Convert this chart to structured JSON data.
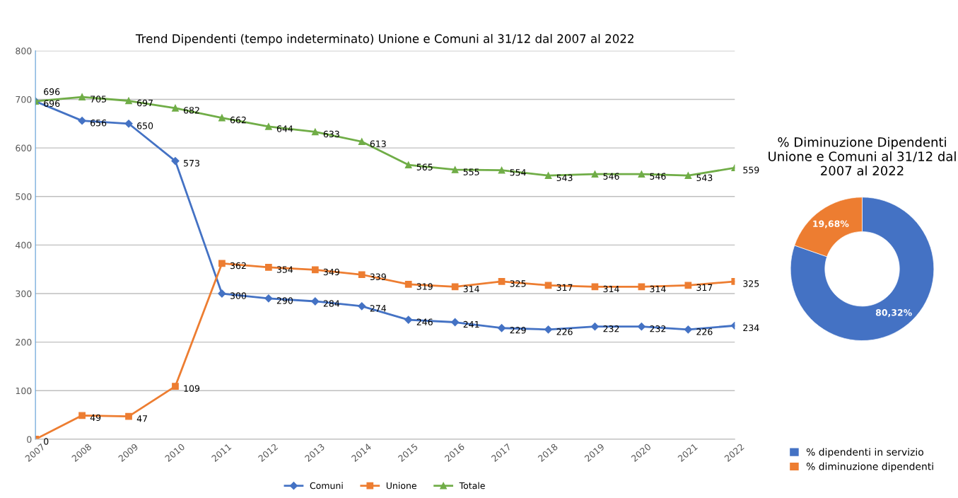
{
  "chart_data": [
    {
      "type": "line",
      "title": "Trend Dipendenti (tempo indeterminato) Unione e Comuni al 31/12 dal 2007 al 2022",
      "categories": [
        "2007",
        "2008",
        "2009",
        "2010",
        "2011",
        "2012",
        "2013",
        "2014",
        "2015",
        "2016",
        "2017",
        "2018",
        "2019",
        "2020",
        "2021",
        "2022"
      ],
      "series": [
        {
          "name": "Comuni",
          "color": "#4472c4",
          "marker": "diamond",
          "values": [
            696,
            656,
            650,
            573,
            300,
            290,
            284,
            274,
            246,
            241,
            229,
            226,
            232,
            232,
            226,
            234
          ]
        },
        {
          "name": "Unione",
          "color": "#ed7d31",
          "marker": "square",
          "values": [
            0,
            49,
            47,
            109,
            362,
            354,
            349,
            339,
            319,
            314,
            325,
            317,
            314,
            314,
            317,
            325
          ]
        },
        {
          "name": "Totale",
          "color": "#70ad47",
          "marker": "triangle",
          "values": [
            696,
            705,
            697,
            682,
            662,
            644,
            633,
            613,
            565,
            555,
            554,
            543,
            546,
            546,
            543,
            559
          ]
        }
      ],
      "ylim": [
        0,
        800
      ],
      "yticks": [
        0,
        100,
        200,
        300,
        400,
        500,
        600,
        700,
        800
      ],
      "grid": "y",
      "legend": "bottom",
      "data_labels": true
    },
    {
      "type": "donut",
      "title": "% Diminuzione Dipendenti Unione e Comuni al 31/12 dal 2007 al 2022",
      "categories": [
        "% dipendenti in servizio",
        "% diminuzione dipendenti"
      ],
      "values": [
        80.32,
        19.68
      ],
      "colors": [
        "#4472c4",
        "#ed7d31"
      ],
      "value_labels": [
        "80,32%",
        "19,68%"
      ],
      "legend": "bottom"
    }
  ]
}
